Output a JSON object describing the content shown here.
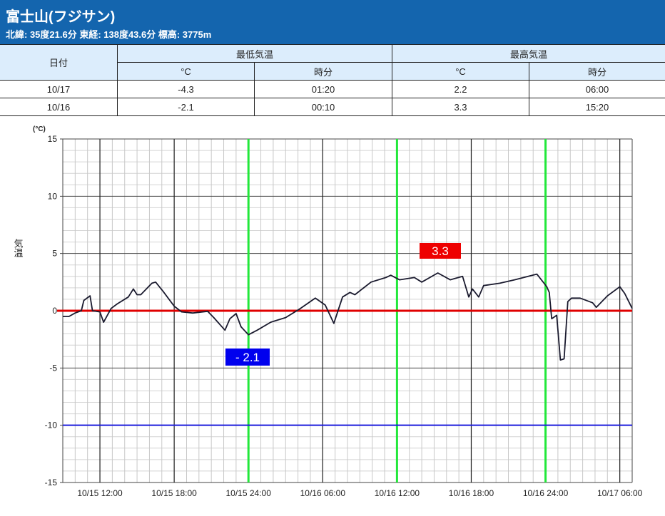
{
  "header": {
    "title": "富士山(フジサン)",
    "subtitle": "北緯: 35度21.6分 東経: 138度43.6分 標高: 3775m"
  },
  "table": {
    "col_date": "日付",
    "col_min": "最低気温",
    "col_max": "最高気温",
    "sub_c": "°C",
    "sub_time": "時分",
    "rows": [
      {
        "date": "10/17",
        "min_c": "-4.3",
        "min_time": "01:20",
        "max_c": "2.2",
        "max_time": "06:00"
      },
      {
        "date": "10/16",
        "min_c": "-2.1",
        "min_time": "00:10",
        "max_c": "3.3",
        "max_time": "15:20"
      }
    ]
  },
  "colors": {
    "header": "#1465ae",
    "line": "#1a1a2e",
    "zero_line": "#e00000",
    "minus10_line": "#1c1cdc",
    "day_marker": "#22e83a",
    "max_box": "#ee0000",
    "min_box": "#0000ee"
  },
  "chart_data": {
    "type": "line",
    "unit_label": "(°C)",
    "ylabel": "気温",
    "ylim": [
      -15,
      15
    ],
    "yticks": [
      15,
      10,
      5,
      0,
      -5,
      -10,
      -15
    ],
    "x_range_hours": [
      0,
      46
    ],
    "x_start": "10/15 09:00",
    "xticks": [
      {
        "h": 3,
        "label": "10/15 12:00"
      },
      {
        "h": 9,
        "label": "10/15 18:00"
      },
      {
        "h": 15,
        "label": "10/15 24:00"
      },
      {
        "h": 21,
        "label": "10/16 06:00"
      },
      {
        "h": 27,
        "label": "10/16 12:00"
      },
      {
        "h": 33,
        "label": "10/16 18:00"
      },
      {
        "h": 39,
        "label": "10/16 24:00"
      },
      {
        "h": 45,
        "label": "10/17 06:00"
      }
    ],
    "green_marker_hours": [
      15,
      27,
      39
    ],
    "reference_lines": [
      0,
      -10
    ],
    "grid": true,
    "annotations": [
      {
        "label": "3.3",
        "h": 30.3,
        "value": 3.3,
        "kind": "max"
      },
      {
        "label": "- 2.1",
        "h": 15,
        "value": -2.1,
        "kind": "min"
      }
    ],
    "series": [
      {
        "name": "気温",
        "x_hours": [
          0,
          0.5,
          1.0,
          1.5,
          1.7,
          2.2,
          2.4,
          3.0,
          3.3,
          3.9,
          4.4,
          5.3,
          5.7,
          6.0,
          6.3,
          7.2,
          7.5,
          8.1,
          9.0,
          9.6,
          10.5,
          11.7,
          12.2,
          13.1,
          13.5,
          14.0,
          14.4,
          15.0,
          15.7,
          16.8,
          18.0,
          19.2,
          20.4,
          21.2,
          21.9,
          22.6,
          23.2,
          23.6,
          24.9,
          26.1,
          26.5,
          27.2,
          28.4,
          29.0,
          30.3,
          31.3,
          32.3,
          32.8,
          33.1,
          33.6,
          34.0,
          35.3,
          36.5,
          38.3,
          39.1,
          39.3,
          39.5,
          39.9,
          40.2,
          40.5,
          40.8,
          41.1,
          41.8,
          42.8,
          43.1,
          44.0,
          45.0,
          45.4,
          46.0
        ],
        "values": [
          -0.5,
          -0.5,
          -0.2,
          0.0,
          0.9,
          1.3,
          0.0,
          -0.1,
          -1.0,
          0.2,
          0.6,
          1.2,
          1.9,
          1.4,
          1.4,
          2.4,
          2.5,
          1.7,
          0.4,
          -0.1,
          -0.2,
          -0.05,
          -0.6,
          -1.7,
          -0.7,
          -0.25,
          -1.4,
          -2.1,
          -1.7,
          -1.0,
          -0.6,
          0.2,
          1.1,
          0.5,
          -1.1,
          1.2,
          1.6,
          1.4,
          2.5,
          2.9,
          3.1,
          2.7,
          2.9,
          2.5,
          3.3,
          2.7,
          3.0,
          1.2,
          1.9,
          1.2,
          2.2,
          2.4,
          2.7,
          3.2,
          2.1,
          1.6,
          -0.7,
          -0.4,
          -4.3,
          -4.2,
          0.8,
          1.1,
          1.1,
          0.7,
          0.3,
          1.3,
          2.1,
          1.5,
          0.2
        ]
      }
    ]
  }
}
